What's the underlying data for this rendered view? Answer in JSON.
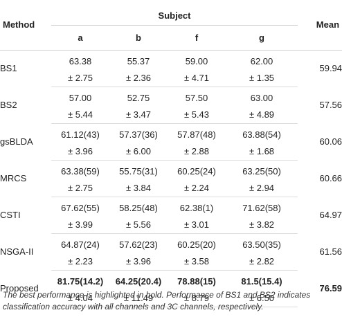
{
  "table": {
    "headers": {
      "method": "Method",
      "subject": "Subject",
      "mean": "Mean",
      "subjects": [
        "a",
        "b",
        "f",
        "g"
      ]
    },
    "rows": [
      {
        "method": "BS1",
        "means": [
          "63.38",
          "55.37",
          "59.00",
          "62.00"
        ],
        "sds": [
          "± 2.75",
          "± 2.36",
          "± 4.71",
          "± 1.35"
        ],
        "mean": "59.94"
      },
      {
        "method": "BS2",
        "means": [
          "57.00",
          "52.75",
          "57.50",
          "63.00"
        ],
        "sds": [
          "± 5.44",
          "± 3.47",
          "± 5.43",
          "± 4.89"
        ],
        "mean": "57.56"
      },
      {
        "method": "gsBLDA",
        "means": [
          "61.12(43)",
          "57.37(36)",
          "57.87(48)",
          "63.88(54)"
        ],
        "sds": [
          "± 3.96",
          "± 6.00",
          "± 2.88",
          "± 1.68"
        ],
        "mean": "60.06"
      },
      {
        "method": "MRCS",
        "means": [
          "63.38(59)",
          "55.75(31)",
          "60.25(24)",
          "63.25(50)"
        ],
        "sds": [
          "± 2.75",
          "± 3.84",
          "± 2.24",
          "± 2.94"
        ],
        "mean": "60.66"
      },
      {
        "method": "CSTI",
        "means": [
          "67.62(55)",
          "58.25(48)",
          "62.38(1)",
          "71.62(58)"
        ],
        "sds": [
          "± 3.99",
          "± 5.56",
          "± 3.01",
          "± 3.82"
        ],
        "mean": "64.97"
      },
      {
        "method": "NSGA-II",
        "means": [
          "64.87(24)",
          "57.62(23)",
          "60.25(20)",
          "63.50(35)"
        ],
        "sds": [
          "± 2.23",
          "± 3.96",
          "± 3.58",
          "± 2.82"
        ],
        "mean": "61.56"
      },
      {
        "method": "Proposed",
        "means": [
          "81.75(14.2)",
          "64.25(20.4)",
          "78.88(15)",
          "81.5(15.4)"
        ],
        "sds": [
          "± 4.04",
          "± 11.49",
          "± 8.79",
          "± 6.50"
        ],
        "mean": "76.59"
      }
    ]
  },
  "caption": "The best performance is highlighted in bold. Performance of BS1 and BS2 indicates classification accuracy with all channels and 3C channels, respectively."
}
